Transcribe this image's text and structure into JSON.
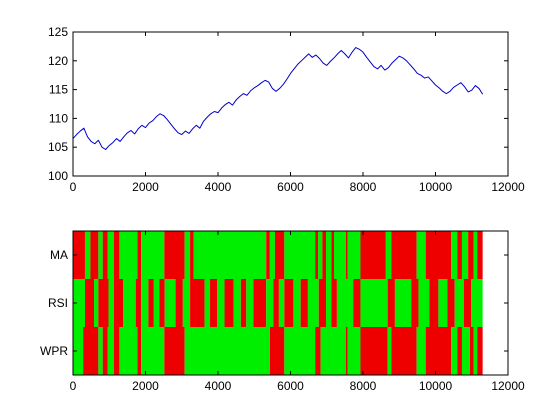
{
  "colors": {
    "line": "#0000cc",
    "buy": "#00ee00",
    "sell": "#ee0000",
    "axis": "#000000",
    "background": "#ffffff"
  },
  "chart_data": [
    {
      "type": "line",
      "title": "",
      "xlabel": "",
      "ylabel": "",
      "xlim": [
        0,
        12000
      ],
      "ylim": [
        100,
        125
      ],
      "x_ticks": [
        0,
        2000,
        4000,
        6000,
        8000,
        10000,
        12000
      ],
      "y_ticks": [
        100,
        105,
        110,
        115,
        120,
        125
      ],
      "grid": false,
      "series": [
        {
          "x": [
            0,
            100,
            200,
            300,
            400,
            500,
            600,
            700,
            800,
            900,
            1000,
            1100,
            1200,
            1300,
            1400,
            1500,
            1600,
            1700,
            1800,
            1900,
            2000,
            2100,
            2200,
            2300,
            2400,
            2500,
            2600,
            2700,
            2800,
            2900,
            3000,
            3100,
            3200,
            3300,
            3400,
            3500,
            3600,
            3700,
            3800,
            3900,
            4000,
            4100,
            4200,
            4300,
            4400,
            4500,
            4600,
            4700,
            4800,
            4900,
            5000,
            5100,
            5200,
            5300,
            5400,
            5500,
            5600,
            5700,
            5800,
            5900,
            6000,
            6100,
            6200,
            6300,
            6400,
            6500,
            6600,
            6700,
            6800,
            6900,
            7000,
            7100,
            7200,
            7300,
            7400,
            7500,
            7600,
            7700,
            7800,
            7900,
            8000,
            8100,
            8200,
            8300,
            8400,
            8500,
            8600,
            8700,
            8800,
            8900,
            9000,
            9100,
            9200,
            9300,
            9400,
            9500,
            9600,
            9700,
            9800,
            9900,
            10000,
            10100,
            10200,
            10300,
            10400,
            10500,
            10600,
            10700,
            10800,
            10900,
            11000,
            11100,
            11200,
            11300
          ],
          "values": [
            106.5,
            107.2,
            107.8,
            108.3,
            106.8,
            106.0,
            105.6,
            106.2,
            105.0,
            104.6,
            105.3,
            105.8,
            106.5,
            106.0,
            106.8,
            107.5,
            107.9,
            107.3,
            108.2,
            108.8,
            108.4,
            109.2,
            109.6,
            110.3,
            110.8,
            110.5,
            109.8,
            109.0,
            108.2,
            107.5,
            107.2,
            107.8,
            107.4,
            108.2,
            108.8,
            108.3,
            109.5,
            110.2,
            110.8,
            111.2,
            111.0,
            111.8,
            112.4,
            112.8,
            112.3,
            113.2,
            113.8,
            114.3,
            114.0,
            114.8,
            115.3,
            115.7,
            116.2,
            116.6,
            116.3,
            115.2,
            114.7,
            115.2,
            115.9,
            116.8,
            117.8,
            118.6,
            119.4,
            120.0,
            120.6,
            121.2,
            120.6,
            121.0,
            120.4,
            119.6,
            119.2,
            119.9,
            120.5,
            121.2,
            121.8,
            121.2,
            120.5,
            121.5,
            122.3,
            122.0,
            121.5,
            120.6,
            119.8,
            119.0,
            118.6,
            119.2,
            118.4,
            118.8,
            119.6,
            120.2,
            120.8,
            120.5,
            120.0,
            119.3,
            118.6,
            117.8,
            117.5,
            117.0,
            117.2,
            116.5,
            115.8,
            115.3,
            114.7,
            114.3,
            114.7,
            115.4,
            115.8,
            116.2,
            115.5,
            114.6,
            114.9,
            115.7,
            115.2,
            114.2
          ]
        }
      ]
    },
    {
      "type": "heatmap",
      "title": "",
      "xlabel": "",
      "ylabel": "",
      "xlim": [
        0,
        12000
      ],
      "x_ticks": [
        0,
        2000,
        4000,
        6000,
        8000,
        10000,
        12000
      ],
      "rows": [
        "MA",
        "RSI",
        "WPR"
      ],
      "x_end": 11300,
      "grid": false,
      "segments": [
        [
          [
            "sell",
            0,
            330
          ],
          [
            "buy",
            330,
            480
          ],
          [
            "sell",
            480,
            700
          ],
          [
            "buy",
            700,
            820
          ],
          [
            "sell",
            820,
            960
          ],
          [
            "buy",
            960,
            1130
          ],
          [
            "sell",
            1130,
            1280
          ],
          [
            "buy",
            1280,
            1780
          ],
          [
            "sell",
            1780,
            1880
          ],
          [
            "buy",
            1880,
            2520
          ],
          [
            "sell",
            2520,
            3080
          ],
          [
            "buy",
            3080,
            3230
          ],
          [
            "sell",
            3230,
            3330
          ],
          [
            "buy",
            3330,
            5330
          ],
          [
            "sell",
            5330,
            5430
          ],
          [
            "buy",
            5430,
            5570
          ],
          [
            "sell",
            5570,
            5830
          ],
          [
            "buy",
            5830,
            6680
          ],
          [
            "sell",
            6680,
            6760
          ],
          [
            "buy",
            6760,
            6880
          ],
          [
            "sell",
            6880,
            6980
          ],
          [
            "buy",
            6980,
            7130
          ],
          [
            "sell",
            7130,
            7200
          ],
          [
            "buy",
            7200,
            7530
          ],
          [
            "sell",
            7530,
            7580
          ],
          [
            "buy",
            7580,
            7930
          ],
          [
            "sell",
            7930,
            8630
          ],
          [
            "buy",
            8630,
            8780
          ],
          [
            "sell",
            8780,
            9480
          ],
          [
            "buy",
            9480,
            9730
          ],
          [
            "sell",
            9730,
            10430
          ],
          [
            "buy",
            10430,
            10600
          ],
          [
            "sell",
            10600,
            10730
          ],
          [
            "buy",
            10730,
            10900
          ],
          [
            "sell",
            10900,
            11050
          ],
          [
            "buy",
            11050,
            11150
          ],
          [
            "sell",
            11150,
            11300
          ]
        ],
        [
          [
            "buy",
            0,
            330
          ],
          [
            "sell",
            330,
            580
          ],
          [
            "buy",
            580,
            700
          ],
          [
            "sell",
            700,
            980
          ],
          [
            "buy",
            980,
            1130
          ],
          [
            "sell",
            1130,
            1380
          ],
          [
            "buy",
            1380,
            1730
          ],
          [
            "sell",
            1730,
            1880
          ],
          [
            "buy",
            1880,
            2080
          ],
          [
            "sell",
            2080,
            2230
          ],
          [
            "buy",
            2230,
            2380
          ],
          [
            "sell",
            2380,
            2530
          ],
          [
            "buy",
            2530,
            2830
          ],
          [
            "sell",
            2830,
            3030
          ],
          [
            "buy",
            3030,
            3230
          ],
          [
            "sell",
            3230,
            3630
          ],
          [
            "buy",
            3630,
            3780
          ],
          [
            "sell",
            3780,
            3980
          ],
          [
            "buy",
            3980,
            4180
          ],
          [
            "sell",
            4180,
            4430
          ],
          [
            "buy",
            4430,
            4630
          ],
          [
            "sell",
            4630,
            4780
          ],
          [
            "buy",
            4780,
            4980
          ],
          [
            "sell",
            4980,
            5330
          ],
          [
            "buy",
            5330,
            5530
          ],
          [
            "sell",
            5530,
            5680
          ],
          [
            "buy",
            5680,
            5830
          ],
          [
            "sell",
            5830,
            6080
          ],
          [
            "buy",
            6080,
            6280
          ],
          [
            "sell",
            6280,
            6480
          ],
          [
            "buy",
            6480,
            6780
          ],
          [
            "sell",
            6780,
            6980
          ],
          [
            "buy",
            6980,
            7130
          ],
          [
            "sell",
            7130,
            7280
          ],
          [
            "buy",
            7280,
            7730
          ],
          [
            "sell",
            7730,
            7930
          ],
          [
            "buy",
            7930,
            8680
          ],
          [
            "sell",
            8680,
            8880
          ],
          [
            "buy",
            8880,
            9330
          ],
          [
            "sell",
            9330,
            9530
          ],
          [
            "buy",
            9530,
            9830
          ],
          [
            "sell",
            9830,
            10080
          ],
          [
            "buy",
            10080,
            10330
          ],
          [
            "sell",
            10330,
            10530
          ],
          [
            "buy",
            10530,
            10780
          ],
          [
            "sell",
            10780,
            10980
          ],
          [
            "buy",
            10980,
            11300
          ]
        ],
        [
          [
            "buy",
            0,
            280
          ],
          [
            "sell",
            280,
            700
          ],
          [
            "buy",
            700,
            820
          ],
          [
            "sell",
            820,
            960
          ],
          [
            "buy",
            960,
            1130
          ],
          [
            "sell",
            1130,
            1280
          ],
          [
            "buy",
            1280,
            1780
          ],
          [
            "sell",
            1780,
            1880
          ],
          [
            "buy",
            1880,
            2520
          ],
          [
            "sell",
            2520,
            3080
          ],
          [
            "buy",
            3080,
            5430
          ],
          [
            "sell",
            5430,
            5830
          ],
          [
            "buy",
            5830,
            6680
          ],
          [
            "sell",
            6680,
            6830
          ],
          [
            "buy",
            6830,
            7530
          ],
          [
            "sell",
            7530,
            7580
          ],
          [
            "buy",
            7580,
            7930
          ],
          [
            "sell",
            7930,
            8680
          ],
          [
            "buy",
            8680,
            8780
          ],
          [
            "sell",
            8780,
            9480
          ],
          [
            "buy",
            9480,
            9730
          ],
          [
            "sell",
            9730,
            10430
          ],
          [
            "buy",
            10430,
            10600
          ],
          [
            "sell",
            10600,
            10730
          ],
          [
            "buy",
            10730,
            10950
          ],
          [
            "sell",
            10950,
            11050
          ],
          [
            "buy",
            11050,
            11150
          ],
          [
            "sell",
            11150,
            11300
          ]
        ]
      ]
    }
  ]
}
